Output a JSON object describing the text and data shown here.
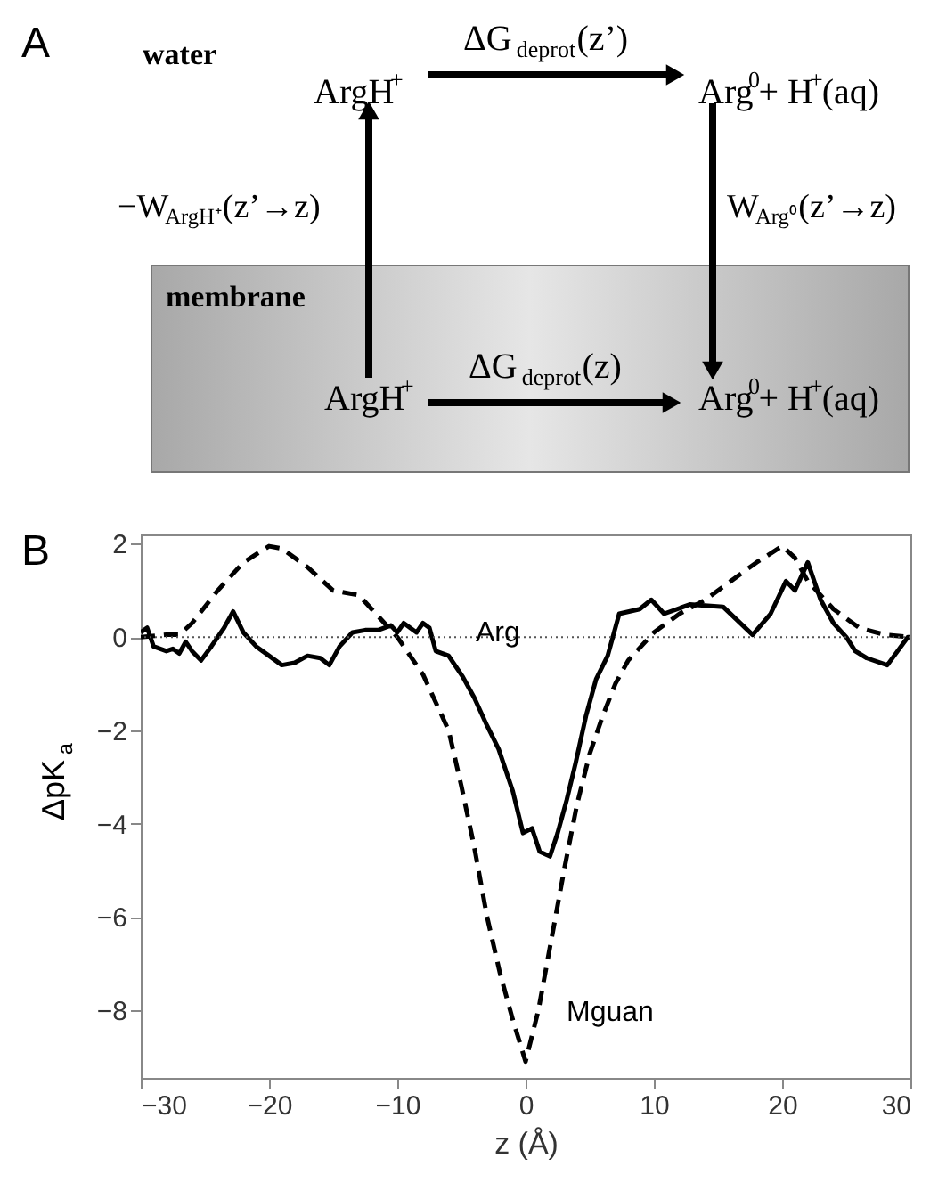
{
  "chart_data": {
    "type": "line",
    "xlabel": "z (Å)",
    "ylabel": "ΔpK$_{a}$",
    "xlim": [
      -30,
      30
    ],
    "xticks": [
      -30,
      -20,
      -10,
      0,
      10,
      20,
      30
    ],
    "ylim": [
      -9.45,
      2.2
    ],
    "yticks": [
      -8,
      -6,
      -4,
      -2,
      0,
      2
    ],
    "grid": false,
    "series": [
      {
        "name": "Arg",
        "color": "#000000",
        "line_style": "solid",
        "x": [
          -30,
          -29.5,
          -29,
          -28,
          -27.5,
          -27,
          -26.5,
          -26,
          -25.3,
          -24.5,
          -23.5,
          -22.8,
          -22,
          -21,
          -20,
          -19,
          -18,
          -17,
          -16,
          -15.3,
          -14.5,
          -13.5,
          -12.5,
          -11.5,
          -10.5,
          -10,
          -9.5,
          -8.5,
          -8,
          -7.5,
          -7,
          -6,
          -4.9,
          -4,
          -3,
          -2.1,
          -1,
          -0.2,
          0.5,
          1.1,
          1.9,
          2.5,
          3.2,
          3.9,
          4.7,
          5.5,
          6.4,
          7.3,
          8.9,
          9.8,
          10.8,
          12.8,
          15.4,
          17.7,
          19.1,
          20.3,
          21,
          22,
          23,
          24,
          25,
          25.7,
          26.6,
          28.2,
          29.8,
          30
        ],
        "values": [
          0.1,
          0.2,
          -0.2,
          -0.3,
          -0.25,
          -0.35,
          -0.1,
          -0.3,
          -0.5,
          -0.2,
          0.2,
          0.55,
          0.1,
          -0.2,
          -0.4,
          -0.6,
          -0.55,
          -0.4,
          -0.45,
          -0.6,
          -0.2,
          0.1,
          0.15,
          0.15,
          0.25,
          0.1,
          0.3,
          0.1,
          0.3,
          0.2,
          -0.3,
          -0.4,
          -0.85,
          -1.3,
          -1.9,
          -2.4,
          -3.3,
          -4.2,
          -4.1,
          -4.6,
          -4.7,
          -4.2,
          -3.5,
          -2.7,
          -1.7,
          -0.9,
          -0.4,
          0.5,
          0.6,
          0.8,
          0.5,
          0.7,
          0.65,
          0.05,
          0.5,
          1.2,
          1.0,
          1.6,
          0.8,
          0.3,
          0,
          -0.3,
          -0.45,
          -0.6,
          0.0,
          0.0
        ]
      },
      {
        "name": "Mguan",
        "color": "#000000",
        "line_style": "dashed",
        "x": [
          -30,
          -28,
          -27,
          -26,
          -24,
          -22,
          -20,
          -19,
          -17,
          -15,
          -13,
          -12,
          -10,
          -8,
          -6,
          -5,
          -4,
          -3,
          -2,
          -1,
          0,
          1,
          2,
          3,
          4,
          5,
          6,
          7,
          8,
          10,
          12,
          14,
          16,
          18,
          20,
          21,
          22,
          24,
          26,
          28,
          30
        ],
        "values": [
          0,
          0.05,
          0.05,
          0.3,
          1.0,
          1.6,
          1.95,
          1.9,
          1.5,
          1.0,
          0.9,
          0.6,
          0,
          -0.8,
          -2.0,
          -3.2,
          -4.5,
          -6.0,
          -7.2,
          -8.2,
          -9.1,
          -8.0,
          -6.5,
          -5.0,
          -3.6,
          -2.5,
          -1.7,
          -1.0,
          -0.5,
          0.1,
          0.5,
          0.8,
          1.2,
          1.6,
          1.95,
          1.7,
          1.2,
          0.6,
          0.2,
          0.05,
          0.0
        ]
      }
    ],
    "ref_lines": [
      {
        "axis": "y",
        "value": 0,
        "color": "#555555",
        "line_style": "dotted"
      }
    ],
    "annotations": [
      "A",
      "water",
      "ArgH$^{+}$",
      "ΔG$_{deprot}$(z’)",
      "Arg$^{0}$+ H$^{+}$(aq)",
      "−W$_{ArgH⁺}$(z’→z)",
      "W$_{Arg⁰}$(z’→z)",
      "membrane",
      "ArgH$^{+}$",
      "ΔG$_{deprot}$(z)",
      "Arg$^{0}$+ H$^{+}$(aq)",
      "B"
    ]
  }
}
